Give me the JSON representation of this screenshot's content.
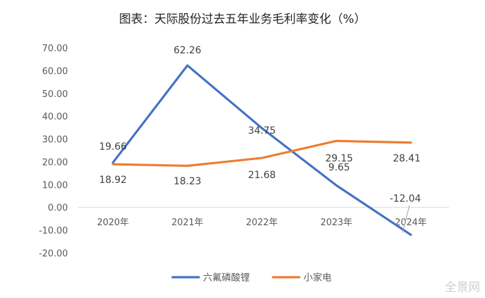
{
  "watermark": "全景网",
  "chart_data": {
    "type": "line",
    "title": "图表：天际股份过去五年业务毛利率变化（%）",
    "categories": [
      "2020年",
      "2021年",
      "2022年",
      "2023年",
      "2024年"
    ],
    "yticks": [
      "70.00",
      "60.00",
      "50.00",
      "40.00",
      "30.00",
      "20.00",
      "10.00",
      "0.00",
      "-10.00",
      "-20.00"
    ],
    "ylim": [
      -20,
      70
    ],
    "grid": false,
    "legend_position": "bottom",
    "series": [
      {
        "name": "六氟磷酸锂",
        "color": "#4472C4",
        "values": [
          19.66,
          62.26,
          34.75,
          9.65,
          -12.04
        ],
        "labels": [
          "19.66",
          "62.26",
          "34.75",
          "9.65",
          "-12.04"
        ]
      },
      {
        "name": "小家电",
        "color": "#ED7D31",
        "values": [
          18.92,
          18.23,
          21.68,
          29.15,
          28.41
        ],
        "labels": [
          "18.92",
          "18.23",
          "21.68",
          "29.15",
          "28.41"
        ]
      }
    ]
  }
}
